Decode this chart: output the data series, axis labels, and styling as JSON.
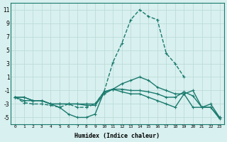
{
  "x": [
    0,
    1,
    2,
    3,
    4,
    5,
    6,
    7,
    8,
    9,
    10,
    11,
    12,
    13,
    14,
    15,
    16,
    17,
    18,
    19,
    20,
    21,
    22,
    23
  ],
  "line1": [
    -2,
    -2.5,
    -2.5,
    -2.5,
    -3,
    -3.5,
    -4.5,
    -5,
    -5,
    -4.5,
    -1.2,
    -0.8,
    -1.2,
    -1.5,
    -1.5,
    -2,
    -2.5,
    -3,
    -3.5,
    -1.5,
    -3.5,
    -3.5,
    -3.5,
    -5
  ],
  "line2": [
    -2,
    -2.8,
    -3,
    -3,
    -3.2,
    -3.5,
    -3,
    -3.5,
    -3.5,
    -3,
    -1.2,
    3.2,
    6,
    9.5,
    11,
    10,
    9.5,
    4.5,
    3,
    1,
    null,
    null,
    null,
    null
  ],
  "line3": [
    -2,
    -2,
    -2.5,
    -2.5,
    -3,
    -3,
    -3,
    -3,
    -3,
    -3,
    -1.2,
    -0.8,
    0,
    0.5,
    1,
    0.5,
    -0.5,
    -1,
    -1.5,
    -1.5,
    -1,
    -3.5,
    -3,
    -5
  ],
  "line4": [
    -2,
    -2,
    -2.5,
    -2.5,
    -3,
    -3,
    -3,
    -3,
    -3.2,
    -3.2,
    -1.5,
    -0.8,
    -0.8,
    -1,
    -1,
    -1.2,
    -1.5,
    -2,
    -2,
    -1.2,
    -1.8,
    -3.5,
    -3.5,
    -5.2
  ],
  "bg_color": "#d8f0ef",
  "line_color": "#1a7a6e",
  "grid_color": "#b8d8d6",
  "xlabel": "Humidex (Indice chaleur)",
  "ylabel": "",
  "xlim": [
    -0.5,
    23.5
  ],
  "ylim": [
    -6,
    12
  ],
  "yticks": [
    -5,
    -3,
    -1,
    1,
    3,
    5,
    7,
    9,
    11
  ],
  "xticks": [
    0,
    1,
    2,
    3,
    4,
    5,
    6,
    7,
    8,
    9,
    10,
    11,
    12,
    13,
    14,
    15,
    16,
    17,
    18,
    19,
    20,
    21,
    22,
    23
  ],
  "xtick_labels": [
    "0",
    "1",
    "2",
    "3",
    "4",
    "5",
    "6",
    "7",
    "8",
    "9",
    "10",
    "11",
    "12",
    "13",
    "14",
    "15",
    "16",
    "17",
    "18",
    "19",
    "20",
    "21",
    "22",
    "23"
  ]
}
